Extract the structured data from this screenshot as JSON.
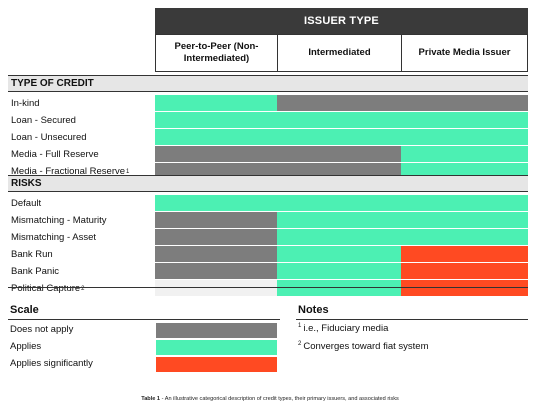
{
  "header": {
    "issuer_type": "ISSUER TYPE",
    "columns": [
      "Peer-to-Peer (Non-Intermediated)",
      "Intermediated",
      "Private Media Issuer"
    ]
  },
  "sections": [
    {
      "title": "TYPE OF CREDIT",
      "rows": [
        {
          "label": "In-kind",
          "sup": "",
          "cells": [
            "applies",
            "na",
            "na"
          ]
        },
        {
          "label": "Loan - Secured",
          "sup": "",
          "cells": [
            "applies",
            "applies",
            "applies"
          ]
        },
        {
          "label": "Loan - Unsecured",
          "sup": "",
          "cells": [
            "applies",
            "applies",
            "applies"
          ]
        },
        {
          "label": "Media - Full Reserve",
          "sup": "",
          "cells": [
            "na",
            "na",
            "applies"
          ]
        },
        {
          "label": "Media - Fractional Reserve",
          "sup": "1",
          "cells": [
            "na",
            "na",
            "applies"
          ]
        }
      ]
    },
    {
      "title": "RISKS",
      "rows": [
        {
          "label": "Default",
          "sup": "",
          "cells": [
            "applies",
            "applies",
            "applies"
          ]
        },
        {
          "label": "Mismatching - Maturity",
          "sup": "",
          "cells": [
            "na",
            "applies",
            "applies"
          ]
        },
        {
          "label": "Mismatching - Asset",
          "sup": "",
          "cells": [
            "na",
            "applies",
            "applies"
          ]
        },
        {
          "label": "Bank Run",
          "sup": "",
          "cells": [
            "na",
            "applies",
            "significant"
          ]
        },
        {
          "label": "Bank Panic",
          "sup": "",
          "cells": [
            "na",
            "applies",
            "significant"
          ]
        },
        {
          "label": "Political Capture",
          "sup": "2",
          "cells": [
            "blank",
            "applies",
            "significant"
          ]
        }
      ]
    }
  ],
  "colors": {
    "na": "#7d7d7d",
    "applies": "#4cf0b3",
    "significant": "#ff4a22"
  },
  "scale": {
    "title": "Scale",
    "items": [
      {
        "label": "Does not apply",
        "key": "na"
      },
      {
        "label": "Applies",
        "key": "applies"
      },
      {
        "label": "Applies significantly",
        "key": "significant"
      }
    ]
  },
  "notes": {
    "title": "Notes",
    "items": [
      {
        "sup": "1",
        "text": "i.e., Fiduciary media"
      },
      {
        "sup": "2",
        "text": "Converges toward fiat system"
      }
    ]
  },
  "caption": {
    "label": "Table 1",
    "text": " - An illustrative categorical description of credit types, their primary issuers, and associated risks"
  }
}
